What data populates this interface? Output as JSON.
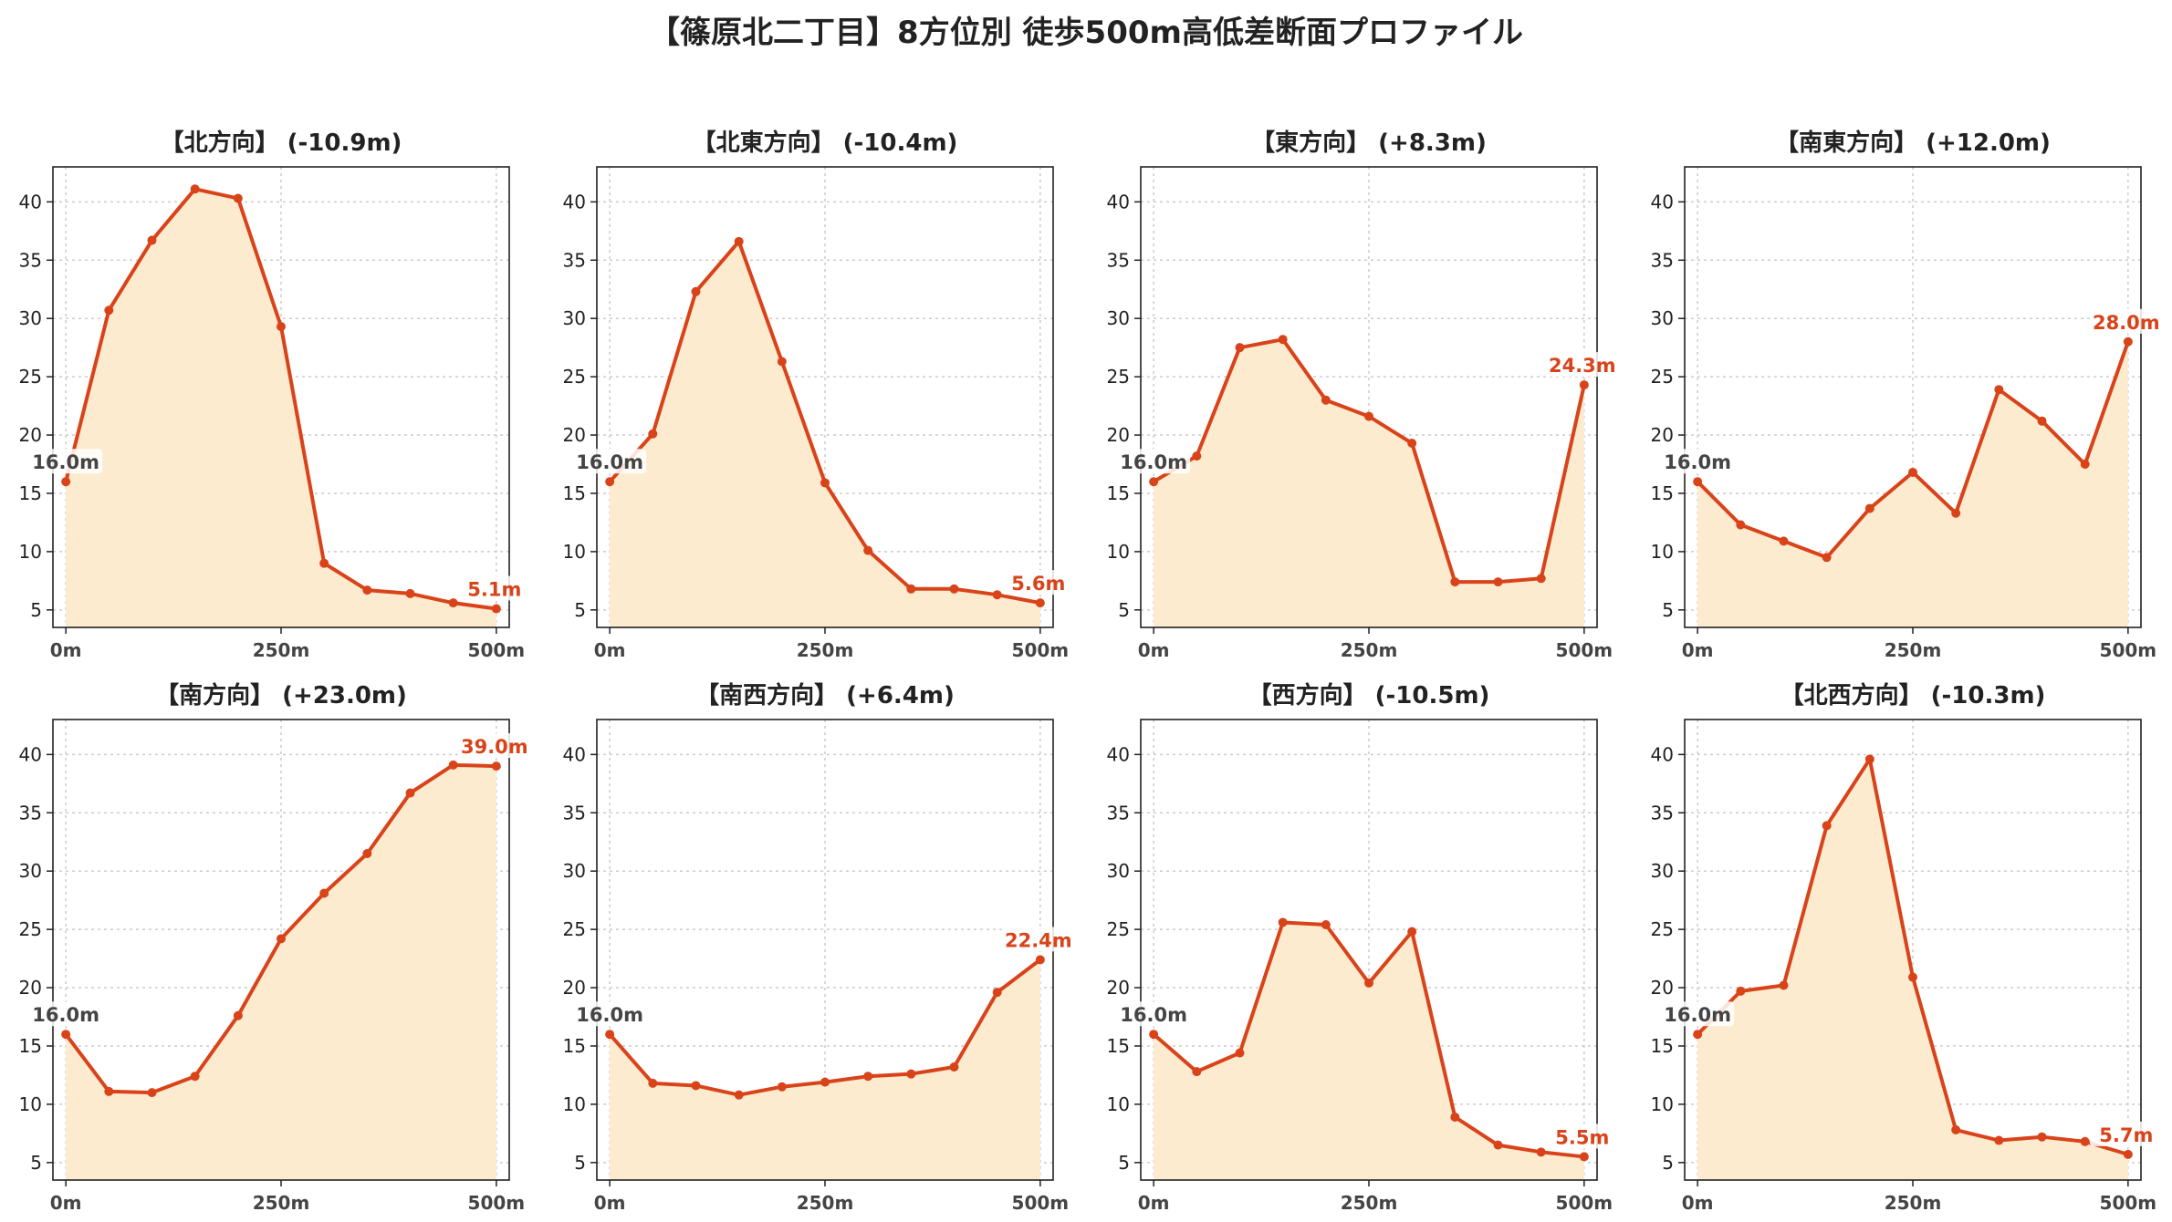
{
  "figure": {
    "suptitle": "【篠原北二丁目】8方位別 徒歩500m高低差断面プロファイル"
  },
  "style": {
    "line_color": "#d9431a",
    "fill_color": "#fdebd0",
    "grid_color": "#cccccc",
    "axis_color": "#222222",
    "start_label_color": "#444444"
  },
  "chart_data": [
    {
      "type": "area",
      "title": "【北方向】 (-10.9m)",
      "x": [
        0,
        50,
        100,
        150,
        200,
        250,
        300,
        350,
        400,
        450,
        500
      ],
      "y": [
        16.0,
        30.7,
        36.7,
        41.1,
        40.3,
        29.3,
        9.0,
        6.7,
        6.4,
        5.6,
        5.1
      ],
      "start_label": "16.0m",
      "end_label": "5.1m",
      "xticks": [
        "0m",
        "250m",
        "500m"
      ],
      "yticks": [
        5,
        10,
        15,
        20,
        25,
        30,
        35,
        40
      ],
      "xlim": [
        -15,
        515
      ],
      "ylim": [
        3.5,
        43
      ],
      "grid": true
    },
    {
      "type": "area",
      "title": "【北東方向】 (-10.4m)",
      "x": [
        0,
        50,
        100,
        150,
        200,
        250,
        300,
        350,
        400,
        450,
        500
      ],
      "y": [
        16.0,
        20.1,
        32.3,
        36.6,
        26.3,
        15.9,
        10.1,
        6.8,
        6.8,
        6.3,
        5.6
      ],
      "start_label": "16.0m",
      "end_label": "5.6m",
      "xticks": [
        "0m",
        "250m",
        "500m"
      ],
      "yticks": [
        5,
        10,
        15,
        20,
        25,
        30,
        35,
        40
      ],
      "xlim": [
        -15,
        515
      ],
      "ylim": [
        3.5,
        43
      ],
      "grid": true
    },
    {
      "type": "area",
      "title": "【東方向】 (+8.3m)",
      "x": [
        0,
        50,
        100,
        150,
        200,
        250,
        300,
        350,
        400,
        450,
        500
      ],
      "y": [
        16.0,
        18.2,
        27.5,
        28.2,
        23.0,
        21.6,
        19.3,
        7.4,
        7.4,
        7.7,
        24.3
      ],
      "start_label": "16.0m",
      "end_label": "24.3m",
      "xticks": [
        "0m",
        "250m",
        "500m"
      ],
      "yticks": [
        5,
        10,
        15,
        20,
        25,
        30,
        35,
        40
      ],
      "xlim": [
        -15,
        515
      ],
      "ylim": [
        3.5,
        43
      ],
      "grid": true
    },
    {
      "type": "area",
      "title": "【南東方向】 (+12.0m)",
      "x": [
        0,
        50,
        100,
        150,
        200,
        250,
        300,
        350,
        400,
        450,
        500
      ],
      "y": [
        16.0,
        12.3,
        10.9,
        9.5,
        13.7,
        16.8,
        13.3,
        23.9,
        21.2,
        17.5,
        28.0
      ],
      "start_label": "16.0m",
      "end_label": "28.0m",
      "xticks": [
        "0m",
        "250m",
        "500m"
      ],
      "yticks": [
        5,
        10,
        15,
        20,
        25,
        30,
        35,
        40
      ],
      "xlim": [
        -15,
        515
      ],
      "ylim": [
        3.5,
        43
      ],
      "grid": true
    },
    {
      "type": "area",
      "title": "【南方向】 (+23.0m)",
      "x": [
        0,
        50,
        100,
        150,
        200,
        250,
        300,
        350,
        400,
        450,
        500
      ],
      "y": [
        16.0,
        11.1,
        11.0,
        12.4,
        17.6,
        24.2,
        28.1,
        31.5,
        36.7,
        39.1,
        39.0
      ],
      "start_label": "16.0m",
      "end_label": "39.0m",
      "xticks": [
        "0m",
        "250m",
        "500m"
      ],
      "yticks": [
        5,
        10,
        15,
        20,
        25,
        30,
        35,
        40
      ],
      "xlim": [
        -15,
        515
      ],
      "ylim": [
        3.5,
        43
      ],
      "grid": true
    },
    {
      "type": "area",
      "title": "【南西方向】 (+6.4m)",
      "x": [
        0,
        50,
        100,
        150,
        200,
        250,
        300,
        350,
        400,
        450,
        500
      ],
      "y": [
        16.0,
        11.8,
        11.6,
        10.8,
        11.5,
        11.9,
        12.4,
        12.6,
        13.2,
        19.6,
        22.4
      ],
      "start_label": "16.0m",
      "end_label": "22.4m",
      "xticks": [
        "0m",
        "250m",
        "500m"
      ],
      "yticks": [
        5,
        10,
        15,
        20,
        25,
        30,
        35,
        40
      ],
      "xlim": [
        -15,
        515
      ],
      "ylim": [
        3.5,
        43
      ],
      "grid": true
    },
    {
      "type": "area",
      "title": "【西方向】 (-10.5m)",
      "x": [
        0,
        50,
        100,
        150,
        200,
        250,
        300,
        350,
        400,
        450,
        500
      ],
      "y": [
        16.0,
        12.8,
        14.4,
        25.6,
        25.4,
        20.4,
        24.8,
        8.9,
        6.5,
        5.9,
        5.5
      ],
      "start_label": "16.0m",
      "end_label": "5.5m",
      "xticks": [
        "0m",
        "250m",
        "500m"
      ],
      "yticks": [
        5,
        10,
        15,
        20,
        25,
        30,
        35,
        40
      ],
      "xlim": [
        -15,
        515
      ],
      "ylim": [
        3.5,
        43
      ],
      "grid": true
    },
    {
      "type": "area",
      "title": "【北西方向】 (-10.3m)",
      "x": [
        0,
        50,
        100,
        150,
        200,
        250,
        300,
        350,
        400,
        450,
        500
      ],
      "y": [
        16.0,
        19.7,
        20.2,
        33.9,
        39.6,
        20.9,
        7.8,
        6.9,
        7.2,
        6.8,
        5.7
      ],
      "start_label": "16.0m",
      "end_label": "5.7m",
      "xticks": [
        "0m",
        "250m",
        "500m"
      ],
      "yticks": [
        5,
        10,
        15,
        20,
        25,
        30,
        35,
        40
      ],
      "xlim": [
        -15,
        515
      ],
      "ylim": [
        3.5,
        43
      ],
      "grid": true
    }
  ]
}
